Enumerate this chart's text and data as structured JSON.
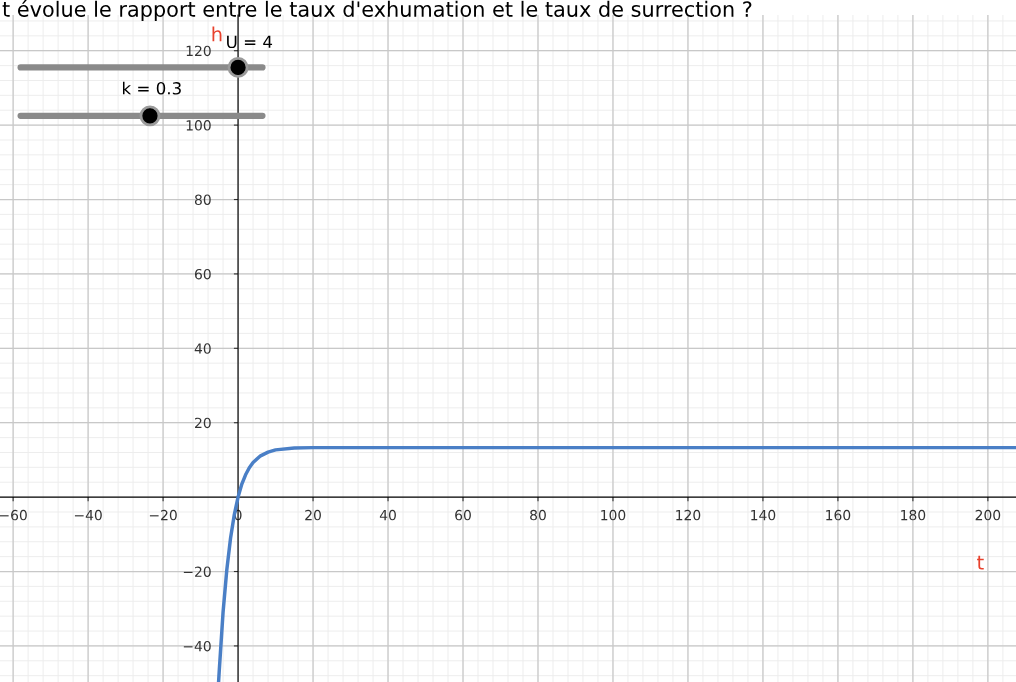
{
  "chart_data": {
    "type": "line",
    "title": "t évolue le rapport entre le taux d'exhumation et le taux de surrection ?",
    "xlabel": "t",
    "ylabel": "h",
    "x": [
      -5.2,
      -5,
      -4,
      -3,
      -2,
      -1,
      0,
      1,
      2,
      3,
      4,
      6,
      8,
      10,
      15,
      20,
      50,
      100,
      150,
      207.5
    ],
    "series": [
      {
        "color": "#4a7fc6",
        "values": [
          -49.7,
          -46.4,
          -30.9,
          -19.5,
          -11.0,
          -4.7,
          0,
          3.5,
          6.0,
          7.9,
          9.3,
          11.1,
          12.1,
          12.7,
          13.2,
          13.3,
          13.3,
          13.3,
          13.3,
          13.3
        ]
      }
    ],
    "xlim": [
      -63.5,
      207.5
    ],
    "ylim": [
      -49.7,
      129.6
    ],
    "xticks": [
      -60,
      -40,
      -20,
      0,
      20,
      40,
      60,
      80,
      100,
      120,
      140,
      160,
      180,
      200
    ],
    "yticks": [
      -40,
      -20,
      20,
      40,
      60,
      80,
      100,
      120
    ],
    "annotations": [
      "U = 4",
      "k = 0.3"
    ],
    "grid": true,
    "marker": "none",
    "line_style": "solid"
  }
}
